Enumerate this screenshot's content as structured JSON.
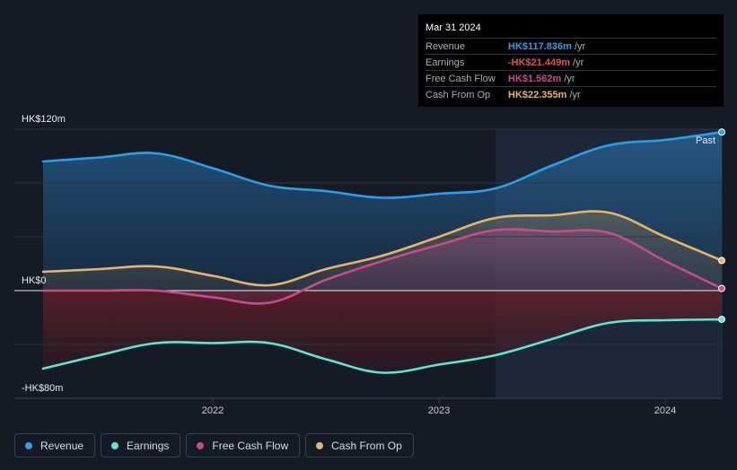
{
  "chart_data": {
    "type": "area",
    "currency_unit": "HK$m",
    "ylim": [
      -80,
      120
    ],
    "y_tick_labels": [
      "HK$120m",
      "HK$0",
      "-HK$80m"
    ],
    "x_tick_labels": [
      "2022",
      "2023",
      "2024"
    ],
    "x_tick_values": [
      2022.0,
      2023.0,
      2024.0
    ],
    "past_label": "Past",
    "forecast_start": 2023.25,
    "x": [
      2021.25,
      2021.5,
      2021.75,
      2022.0,
      2022.25,
      2022.5,
      2022.75,
      2023.0,
      2023.25,
      2023.5,
      2023.75,
      2024.0,
      2024.25
    ],
    "series": [
      {
        "name": "Revenue",
        "color": "#2d9ee8",
        "values": [
          96,
          99,
          102,
          91,
          78,
          74,
          69,
          72,
          76,
          93,
          108,
          112,
          117.8
        ]
      },
      {
        "name": "Earnings",
        "color": "#5ee6d0",
        "values": [
          -58,
          -48,
          -39,
          -39,
          -39,
          -51,
          -61,
          -55,
          -48,
          -36,
          -24,
          -22,
          -21.4
        ]
      },
      {
        "name": "Free Cash Flow",
        "color": "#c84c8c",
        "values": [
          0,
          0,
          0,
          -5,
          -9,
          8,
          22,
          34,
          45,
          44,
          43,
          22,
          1.6
        ]
      },
      {
        "name": "Cash From Op",
        "color": "#e6b46a",
        "values": [
          14,
          16,
          18,
          11,
          4,
          16,
          26,
          40,
          54,
          56,
          58,
          40,
          22.4
        ]
      }
    ],
    "legend": [
      "Revenue",
      "Earnings",
      "Free Cash Flow",
      "Cash From Op"
    ]
  },
  "tooltip": {
    "date": "Mar 31 2024",
    "rows": [
      {
        "name": "Revenue",
        "value": "HK$117.836m",
        "unit": "/yr",
        "color": "#2d9ee8"
      },
      {
        "name": "Earnings",
        "value": "-HK$21.449m",
        "unit": "/yr",
        "color": "#e74c4c"
      },
      {
        "name": "Free Cash Flow",
        "value": "HK$1.562m",
        "unit": "/yr",
        "color": "#c84c8c"
      },
      {
        "name": "Cash From Op",
        "value": "HK$22.355m",
        "unit": "/yr",
        "color": "#e6b46a"
      }
    ]
  }
}
